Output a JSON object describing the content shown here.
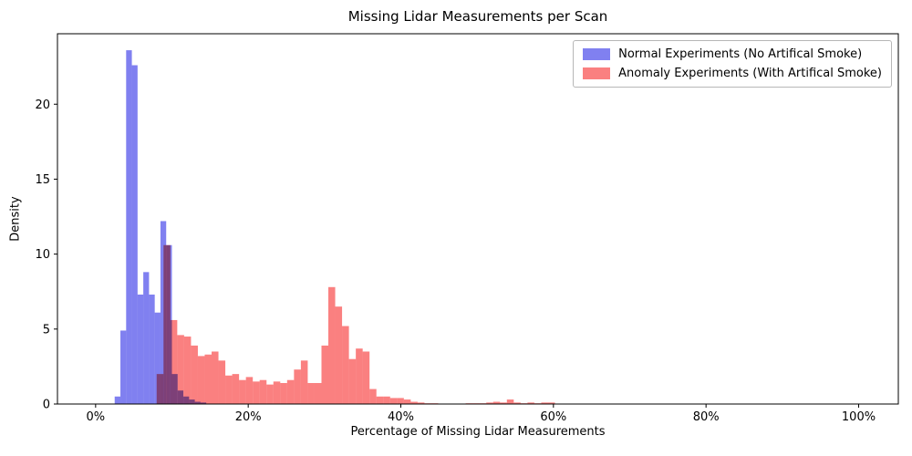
{
  "chart_data": {
    "type": "histogram",
    "title": "Missing Lidar Measurements per Scan",
    "xlabel": "Percentage of Missing Lidar Measurements",
    "ylabel": "Density",
    "xlim": [
      -5.0,
      105.2
    ],
    "ylim": [
      0,
      24.7
    ],
    "grid": false,
    "legend_position": "upper-right",
    "xticks": [
      {
        "v": 0,
        "label": "0%"
      },
      {
        "v": 20,
        "label": "20%"
      },
      {
        "v": 40,
        "label": "40%"
      },
      {
        "v": 60,
        "label": "60%"
      },
      {
        "v": 80,
        "label": "80%"
      },
      {
        "v": 100,
        "label": "100%"
      }
    ],
    "yticks": [
      {
        "v": 0,
        "label": "0"
      },
      {
        "v": 5,
        "label": "5"
      },
      {
        "v": 10,
        "label": "10"
      },
      {
        "v": 15,
        "label": "15"
      },
      {
        "v": 20,
        "label": "20"
      }
    ],
    "series": [
      {
        "name": "Normal Experiments (No Artifical Smoke)",
        "color": "#8080f0",
        "bin_start": 2.5,
        "bin_width": 0.75,
        "values": [
          0.5,
          4.9,
          23.6,
          22.6,
          7.3,
          8.8,
          7.3,
          6.1,
          12.2,
          10.6,
          2.0,
          0.9,
          0.5,
          0.3,
          0.15,
          0.1
        ]
      },
      {
        "name": "Anomaly Experiments (With Artifical Smoke)",
        "color": "#fa8080",
        "bin_start": 8.0,
        "bin_width": 0.9,
        "values": [
          2.0,
          10.6,
          5.6,
          4.6,
          4.5,
          3.9,
          3.2,
          3.3,
          3.5,
          2.9,
          1.9,
          2.0,
          1.6,
          1.8,
          1.5,
          1.6,
          1.3,
          1.5,
          1.4,
          1.6,
          2.3,
          2.9,
          1.4,
          1.4,
          3.9,
          7.8,
          6.5,
          5.2,
          3.0,
          3.7,
          3.5,
          1.0,
          0.5,
          0.5,
          0.4,
          0.4,
          0.3,
          0.15,
          0.1,
          0.05,
          0.05,
          0.02,
          0.02,
          0.02,
          0.02,
          0.05,
          0.05,
          0.05,
          0.1,
          0.15,
          0.1,
          0.3,
          0.1,
          0.05,
          0.1,
          0.05,
          0.1,
          0.1
        ]
      }
    ]
  }
}
